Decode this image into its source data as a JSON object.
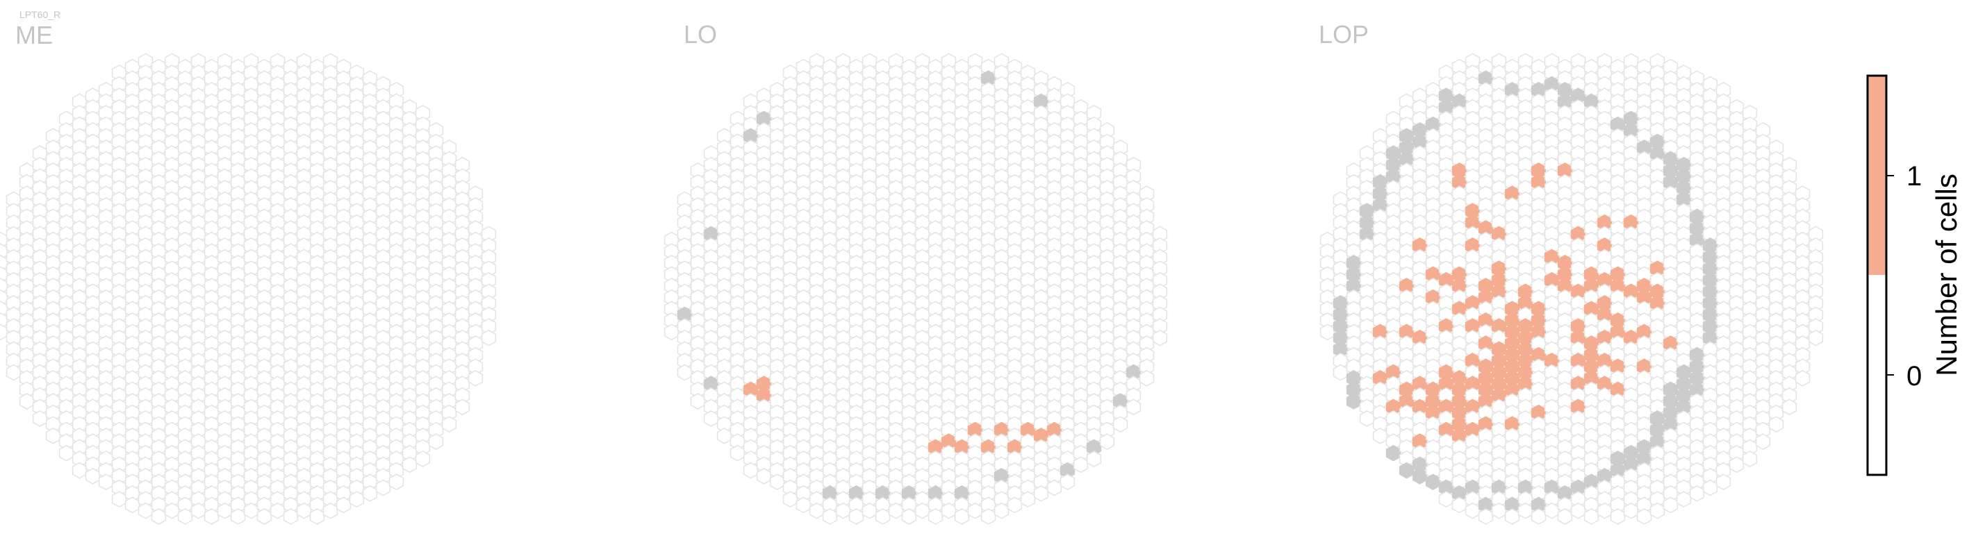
{
  "figure": {
    "cell_type": "LPT60_R",
    "colorbar_label": "Number of cells"
  },
  "colors": {
    "empty_outline": "#e3e3e3",
    "filled": "#f5ad92",
    "inactive_column": "#cccccc",
    "panel_title": "#c4c4c4",
    "colorbar_frame": "#000000"
  },
  "chart_data": {
    "type": "heatmap",
    "grid": "hexagonal columns (single-count map per neuropil)",
    "panels": [
      {
        "title": "ME",
        "filled_cells": [],
        "grey_cells": []
      },
      {
        "title": "LO",
        "filled_cells": [
          [
            7,
            28
          ],
          [
            8,
            28
          ],
          [
            8,
            29
          ],
          [
            21,
            33
          ],
          [
            22,
            33
          ],
          [
            23,
            33
          ],
          [
            24,
            32
          ],
          [
            25,
            33
          ],
          [
            26,
            32
          ],
          [
            27,
            33
          ],
          [
            28,
            32
          ],
          [
            29,
            32
          ],
          [
            30,
            32
          ]
        ],
        "grey_cells": [
          [
            2,
            22
          ],
          [
            4,
            28
          ],
          [
            4,
            15
          ],
          [
            7,
            6
          ],
          [
            8,
            5
          ],
          [
            13,
            37
          ],
          [
            15,
            37
          ],
          [
            17,
            37
          ],
          [
            19,
            37
          ],
          [
            21,
            37
          ],
          [
            23,
            37
          ],
          [
            25,
            1
          ],
          [
            26,
            36
          ],
          [
            29,
            3
          ],
          [
            31,
            35
          ],
          [
            33,
            33
          ],
          [
            35,
            29
          ],
          [
            36,
            27
          ]
        ]
      },
      {
        "title": "LOP",
        "filled_cells": [
          [
            5,
            23
          ],
          [
            5,
            27
          ],
          [
            6,
            27
          ],
          [
            6,
            30
          ],
          [
            7,
            19
          ],
          [
            7,
            23
          ],
          [
            7,
            28
          ],
          [
            7,
            29
          ],
          [
            8,
            16
          ],
          [
            8,
            24
          ],
          [
            8,
            28
          ],
          [
            8,
            30
          ],
          [
            8,
            33
          ],
          [
            9,
            18
          ],
          [
            9,
            20
          ],
          [
            9,
            28
          ],
          [
            9,
            29
          ],
          [
            9,
            30
          ],
          [
            10,
            19
          ],
          [
            10,
            23
          ],
          [
            10,
            27
          ],
          [
            10,
            28
          ],
          [
            10,
            30
          ],
          [
            10,
            32
          ],
          [
            11,
            9
          ],
          [
            11,
            10
          ],
          [
            11,
            18
          ],
          [
            11,
            19
          ],
          [
            11,
            21
          ],
          [
            11,
            27
          ],
          [
            11,
            28
          ],
          [
            11,
            29
          ],
          [
            11,
            30
          ],
          [
            11,
            31
          ],
          [
            11,
            32
          ],
          [
            12,
            13
          ],
          [
            12,
            14
          ],
          [
            12,
            16
          ],
          [
            12,
            21
          ],
          [
            12,
            23
          ],
          [
            12,
            26
          ],
          [
            12,
            28
          ],
          [
            12,
            30
          ],
          [
            12,
            32
          ],
          [
            13,
            14
          ],
          [
            13,
            19
          ],
          [
            13,
            20
          ],
          [
            13,
            22
          ],
          [
            13,
            24
          ],
          [
            13,
            26
          ],
          [
            13,
            27
          ],
          [
            13,
            28
          ],
          [
            13,
            29
          ],
          [
            13,
            31
          ],
          [
            14,
            15
          ],
          [
            14,
            18
          ],
          [
            14,
            19
          ],
          [
            14,
            20
          ],
          [
            14,
            23
          ],
          [
            14,
            25
          ],
          [
            14,
            26
          ],
          [
            14,
            27
          ],
          [
            14,
            28
          ],
          [
            14,
            29
          ],
          [
            15,
            11
          ],
          [
            15,
            21
          ],
          [
            15,
            22
          ],
          [
            15,
            23
          ],
          [
            15,
            24
          ],
          [
            15,
            25
          ],
          [
            15,
            26
          ],
          [
            15,
            27
          ],
          [
            15,
            28
          ],
          [
            15,
            31
          ],
          [
            16,
            20
          ],
          [
            16,
            21
          ],
          [
            16,
            23
          ],
          [
            16,
            24
          ],
          [
            16,
            25
          ],
          [
            16,
            26
          ],
          [
            16,
            27
          ],
          [
            16,
            28
          ],
          [
            17,
            9
          ],
          [
            17,
            10
          ],
          [
            17,
            21
          ],
          [
            17,
            22
          ],
          [
            17,
            23
          ],
          [
            17,
            25
          ],
          [
            17,
            30
          ],
          [
            18,
            17
          ],
          [
            18,
            19
          ],
          [
            18,
            26
          ],
          [
            19,
            9
          ],
          [
            19,
            17
          ],
          [
            19,
            18
          ],
          [
            19,
            19
          ],
          [
            20,
            15
          ],
          [
            20,
            20
          ],
          [
            20,
            23
          ],
          [
            20,
            24
          ],
          [
            20,
            26
          ],
          [
            20,
            28
          ],
          [
            20,
            30
          ],
          [
            21,
            18
          ],
          [
            21,
            19
          ],
          [
            21,
            21
          ],
          [
            21,
            24
          ],
          [
            21,
            25
          ],
          [
            21,
            26
          ],
          [
            21,
            27
          ],
          [
            22,
            14
          ],
          [
            22,
            16
          ],
          [
            22,
            19
          ],
          [
            22,
            21
          ],
          [
            22,
            22
          ],
          [
            22,
            24
          ],
          [
            22,
            26
          ],
          [
            22,
            28
          ],
          [
            23,
            18
          ],
          [
            23,
            19
          ],
          [
            23,
            22
          ],
          [
            23,
            23
          ],
          [
            23,
            26
          ],
          [
            23,
            28
          ],
          [
            24,
            14
          ],
          [
            24,
            20
          ],
          [
            24,
            24
          ],
          [
            25,
            19
          ],
          [
            25,
            20
          ],
          [
            25,
            23
          ],
          [
            25,
            26
          ],
          [
            26,
            18
          ],
          [
            26,
            20
          ],
          [
            26,
            21
          ],
          [
            27,
            24
          ]
        ],
        "grey_cells": [
          [
            2,
            21
          ],
          [
            2,
            22
          ],
          [
            2,
            23
          ],
          [
            2,
            24
          ],
          [
            2,
            25
          ],
          [
            3,
            17
          ],
          [
            3,
            18
          ],
          [
            3,
            19
          ],
          [
            3,
            27
          ],
          [
            3,
            28
          ],
          [
            3,
            29
          ],
          [
            3,
            30
          ],
          [
            3,
            31
          ],
          [
            4,
            13
          ],
          [
            4,
            14
          ],
          [
            4,
            15
          ],
          [
            4,
            32
          ],
          [
            4,
            33
          ],
          [
            4,
            34
          ],
          [
            5,
            10
          ],
          [
            5,
            11
          ],
          [
            5,
            12
          ],
          [
            5,
            33
          ],
          [
            5,
            34
          ],
          [
            5,
            35
          ],
          [
            6,
            8
          ],
          [
            6,
            9
          ],
          [
            6,
            10
          ],
          [
            6,
            34
          ],
          [
            6,
            35
          ],
          [
            7,
            6
          ],
          [
            7,
            7
          ],
          [
            7,
            8
          ],
          [
            7,
            35
          ],
          [
            7,
            36
          ],
          [
            8,
            6
          ],
          [
            8,
            7
          ],
          [
            8,
            35
          ],
          [
            8,
            36
          ],
          [
            9,
            5
          ],
          [
            9,
            36
          ],
          [
            10,
            3
          ],
          [
            10,
            4
          ],
          [
            10,
            37
          ],
          [
            11,
            3
          ],
          [
            11,
            37
          ],
          [
            12,
            37
          ],
          [
            13,
            1
          ],
          [
            13,
            38
          ],
          [
            14,
            37
          ],
          [
            15,
            2
          ],
          [
            15,
            38
          ],
          [
            16,
            37
          ],
          [
            17,
            2
          ],
          [
            17,
            38
          ],
          [
            18,
            2
          ],
          [
            18,
            37
          ],
          [
            19,
            2
          ],
          [
            19,
            3
          ],
          [
            19,
            37
          ],
          [
            20,
            3
          ],
          [
            20,
            37
          ],
          [
            21,
            3
          ],
          [
            21,
            36
          ],
          [
            22,
            36
          ],
          [
            23,
            5
          ],
          [
            23,
            34
          ],
          [
            23,
            35
          ],
          [
            24,
            5
          ],
          [
            24,
            6
          ],
          [
            24,
            34
          ],
          [
            24,
            35
          ],
          [
            25,
            7
          ],
          [
            25,
            33
          ],
          [
            25,
            34
          ],
          [
            26,
            7
          ],
          [
            26,
            8
          ],
          [
            26,
            31
          ],
          [
            26,
            32
          ],
          [
            26,
            33
          ],
          [
            27,
            8
          ],
          [
            27,
            9
          ],
          [
            27,
            10
          ],
          [
            27,
            28
          ],
          [
            27,
            29
          ],
          [
            27,
            30
          ],
          [
            27,
            31
          ],
          [
            28,
            9
          ],
          [
            28,
            10
          ],
          [
            28,
            11
          ],
          [
            28,
            12
          ],
          [
            28,
            27
          ],
          [
            28,
            28
          ],
          [
            28,
            29
          ],
          [
            28,
            30
          ],
          [
            29,
            13
          ],
          [
            29,
            14
          ],
          [
            29,
            15
          ],
          [
            29,
            25
          ],
          [
            29,
            26
          ],
          [
            29,
            27
          ],
          [
            29,
            28
          ],
          [
            30,
            16
          ],
          [
            30,
            17
          ],
          [
            30,
            18
          ],
          [
            30,
            19
          ],
          [
            30,
            20
          ],
          [
            30,
            21
          ],
          [
            30,
            22
          ],
          [
            30,
            23
          ],
          [
            30,
            24
          ]
        ]
      }
    ],
    "colorbar": {
      "label": "Number of cells",
      "ticks": [
        "0",
        "1"
      ],
      "range": [
        -0.5,
        1.5
      ],
      "segments": [
        {
          "from": -0.5,
          "to": 0.5,
          "color": "#ffffff"
        },
        {
          "from": 0.5,
          "to": 1.5,
          "color": "#f5ad92"
        }
      ]
    }
  }
}
